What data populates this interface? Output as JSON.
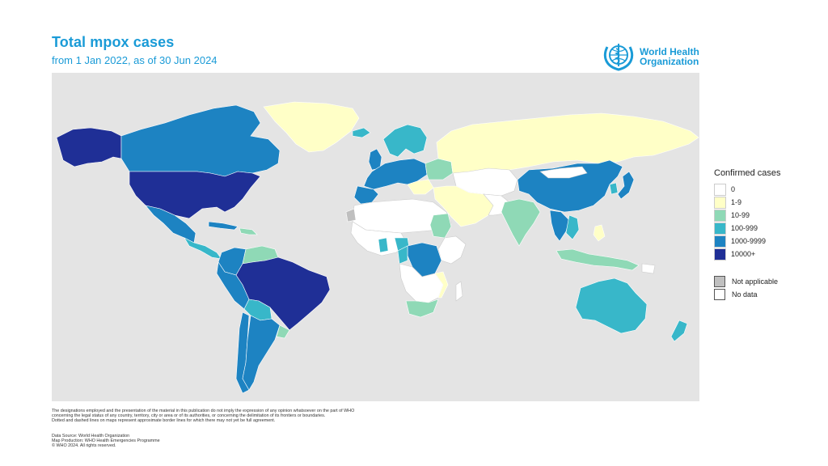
{
  "header": {
    "title": "Total mpox cases",
    "subtitle": "from 1 Jan 2022, as of 30 Jun 2024"
  },
  "logo": {
    "line1": "World Health",
    "line2": "Organization",
    "icon": "who-emblem-icon"
  },
  "colors": {
    "ocean": "#e4e4e4",
    "zero": "#ffffff",
    "c1_9": "#ffffc7",
    "c10_99": "#8fd9b6",
    "c100_999": "#38b7c9",
    "c1000_9999": "#1d83c2",
    "c10000": "#1f2f96",
    "not_applicable": "#bfbfbf",
    "no_data": "#ffffff",
    "accent": "#1a9bd7"
  },
  "legend": {
    "title": "Confirmed cases",
    "items": [
      {
        "label": "0",
        "color": "#ffffff"
      },
      {
        "label": "1-9",
        "color": "#ffffc7"
      },
      {
        "label": "10-99",
        "color": "#8fd9b6"
      },
      {
        "label": "100-999",
        "color": "#38b7c9"
      },
      {
        "label": "1000-9999",
        "color": "#1d83c2"
      },
      {
        "label": "10000+",
        "color": "#1f2f96"
      }
    ],
    "extra": [
      {
        "label": "Not applicable",
        "color": "#bfbfbf"
      },
      {
        "label": "No data",
        "color": "#ffffff"
      }
    ]
  },
  "disclaimer": {
    "line1": "The designations employed and the presentation of the material in this publication do not imply the expression of any opinion whatsoever on the part of WHO",
    "line2": "concerning the legal status of any country, territory, city or area or of its authorities, or concerning the delimitation of its frontiers or boundaries.",
    "line3": "Dotted and dashed lines on maps represent approximate border lines for which there may not yet be full agreement."
  },
  "credits": {
    "source": "Data Source: World Health Organization",
    "production": "Map Production: WHO Health Emergencies Programme",
    "copyright": "© WHO 2024. All rights reserved."
  }
}
